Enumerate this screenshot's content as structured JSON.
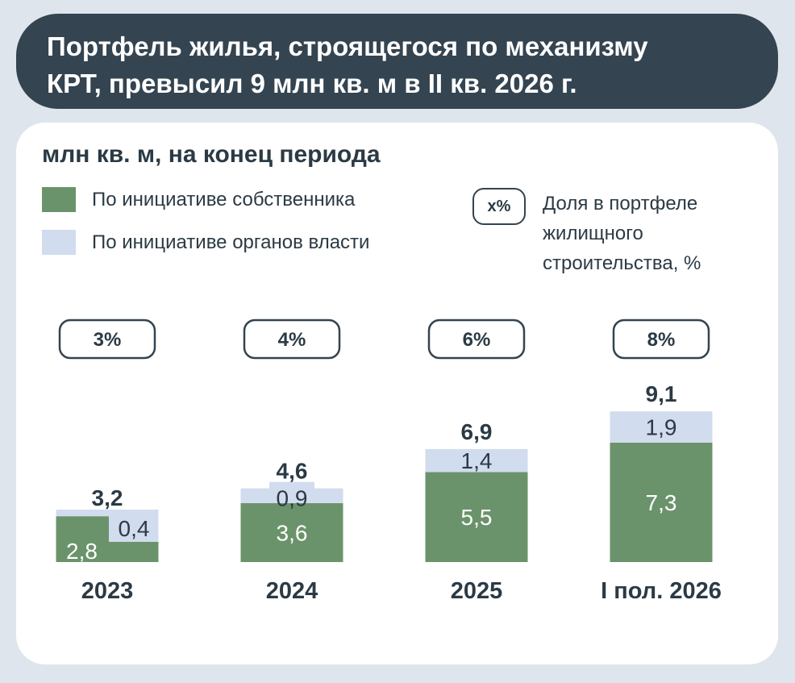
{
  "header": {
    "line1": "Портфель жилья, строящегося по механизму",
    "line2": "КРТ, превысил 9 млн кв. м в II кв. 2026 г."
  },
  "subtitle": "млн кв. м, на конец периода",
  "legend": {
    "owner": "По инициативе собственника",
    "authority": "По инициативе органов власти",
    "share_marker": "x%",
    "share_line1": "Доля в портфеле",
    "share_line2": "жилищного",
    "share_line3": "строительства, %"
  },
  "colors": {
    "owner": "#6b936b",
    "authority": "#d1dcee",
    "header_bg": "#344450",
    "page_bg": "#dfe5ec",
    "text": "#2b3a44"
  },
  "chart_data": {
    "type": "bar",
    "stacked": true,
    "categories": [
      "2023",
      "2024",
      "2025",
      "I пол. 2026"
    ],
    "series": [
      {
        "name": "По инициативе собственника",
        "values": [
          2.8,
          3.6,
          5.5,
          7.3
        ],
        "labels": [
          "2,8",
          "3,6",
          "5,5",
          "7,3"
        ]
      },
      {
        "name": "По инициативе органов власти",
        "values": [
          0.4,
          0.9,
          1.4,
          1.9
        ],
        "labels": [
          "0,4",
          "0,9",
          "1,4",
          "1,9"
        ]
      }
    ],
    "totals": [
      3.2,
      4.6,
      6.9,
      9.1
    ],
    "total_labels": [
      "3,2",
      "4,6",
      "6,9",
      "9,1"
    ],
    "shares": [
      "3%",
      "4%",
      "6%",
      "8%"
    ],
    "ylim": [
      0,
      9.1
    ]
  }
}
